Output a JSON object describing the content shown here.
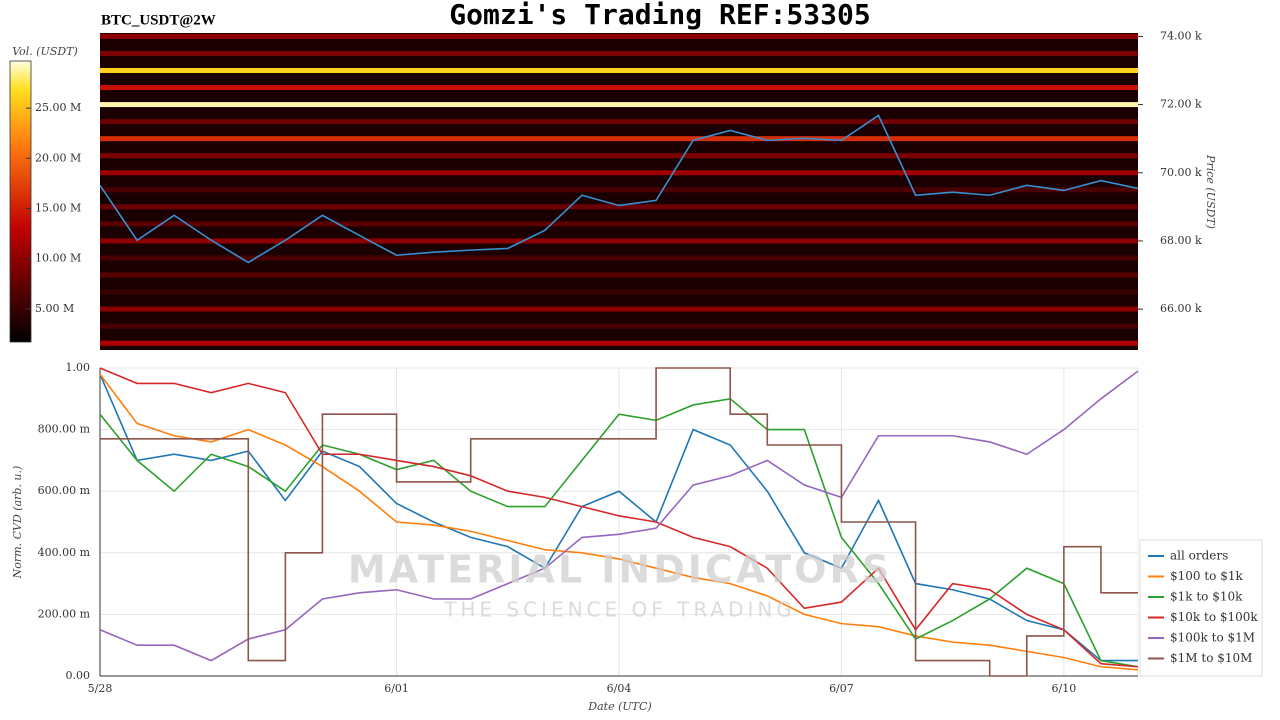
{
  "header": {
    "title": "Gomzi's Trading REF:53305",
    "symbol": "BTC_USDT@2W"
  },
  "watermark": {
    "title": "MATERIAL INDICATORS",
    "subtitle": "THE SCIENCE OF TRADING"
  },
  "chart_data": [
    {
      "type": "heatmap",
      "ylabel": "Price (USDT)",
      "xlim": [
        0,
        14
      ],
      "ylim": [
        64800,
        74100
      ],
      "yticks": [
        {
          "value": 66000,
          "label": "66.00 k"
        },
        {
          "value": 68000,
          "label": "68.00 k"
        },
        {
          "value": 70000,
          "label": "70.00 k"
        },
        {
          "value": 72000,
          "label": "72.00 k"
        },
        {
          "value": 74000,
          "label": "74.00 k"
        }
      ],
      "levels": [
        65000,
        65500,
        66000,
        66500,
        67000,
        67500,
        68000,
        68500,
        69000,
        69500,
        70000,
        70500,
        71000,
        71500,
        72000,
        72500,
        73000,
        73500,
        74000
      ],
      "volumes": [
        12000000,
        6000000,
        10000000,
        5000000,
        7000000,
        6000000,
        10000000,
        7000000,
        8000000,
        6000000,
        11000000,
        9000000,
        16000000,
        8000000,
        29000000,
        14000000,
        26000000,
        9000000,
        10000000
      ],
      "colorbar": {
        "label": "Vol. (USDT)",
        "lim": [
          1700000,
          29700000
        ],
        "ticks": [
          {
            "value": 5000000,
            "label": "5.00 M"
          },
          {
            "value": 10000000,
            "label": "10.00 M"
          },
          {
            "value": 15000000,
            "label": "15.00 M"
          },
          {
            "value": 20000000,
            "label": "20.00 M"
          },
          {
            "value": 25000000,
            "label": "25.00 M"
          }
        ]
      },
      "x": [
        0,
        0.5,
        1,
        1.5,
        2,
        2.5,
        3,
        3.5,
        4,
        4.5,
        5,
        5.5,
        6,
        6.5,
        7,
        7.5,
        8,
        8.5,
        9,
        9.5,
        10,
        10.5,
        11,
        11.5,
        12,
        12.5,
        13,
        13.5,
        14
      ],
      "price": [
        69630,
        68020,
        68750,
        68020,
        67370,
        68020,
        68750,
        68160,
        67580,
        67670,
        67730,
        67780,
        68310,
        69340,
        69040,
        69190,
        70950,
        71240,
        70950,
        71010,
        70950,
        71680,
        69340,
        69430,
        69340,
        69630,
        69480,
        69770,
        69540
      ],
      "price_color": "#3a8fd0"
    },
    {
      "type": "line",
      "xlabel": "Date (UTC)",
      "ylabel": "Norm. CVD (arb. u.)",
      "xlim": [
        0,
        14
      ],
      "ylim": [
        0,
        1
      ],
      "xticks": [
        {
          "value": 0,
          "label": "5/28"
        },
        {
          "value": 4,
          "label": "6/01"
        },
        {
          "value": 7,
          "label": "6/04"
        },
        {
          "value": 10,
          "label": "6/07"
        },
        {
          "value": 13,
          "label": "6/10"
        }
      ],
      "yticks": [
        {
          "value": 0,
          "label": "0.00"
        },
        {
          "value": 0.2,
          "label": "200.00 m"
        },
        {
          "value": 0.4,
          "label": "400.00 m"
        },
        {
          "value": 0.6,
          "label": "600.00 m"
        },
        {
          "value": 0.8,
          "label": "800.00 m"
        },
        {
          "value": 1,
          "label": "1.00"
        }
      ],
      "grid": true,
      "legend": "lower right",
      "x": [
        0,
        0.5,
        1,
        1.5,
        2,
        2.5,
        3,
        3.5,
        4,
        4.5,
        5,
        5.5,
        6,
        6.5,
        7,
        7.5,
        8,
        8.5,
        9,
        9.5,
        10,
        10.5,
        11,
        11.5,
        12,
        12.5,
        13,
        13.5,
        14
      ],
      "series": [
        {
          "name": "all orders",
          "color": "#1f77b4",
          "values": [
            0.98,
            0.7,
            0.72,
            0.7,
            0.73,
            0.57,
            0.73,
            0.68,
            0.56,
            0.5,
            0.45,
            0.42,
            0.35,
            0.55,
            0.6,
            0.5,
            0.8,
            0.75,
            0.6,
            0.4,
            0.35,
            0.57,
            0.3,
            0.28,
            0.25,
            0.18,
            0.15,
            0.05,
            0.05
          ]
        },
        {
          "name": "$100 to $1k",
          "color": "#ff7f0e",
          "values": [
            0.98,
            0.82,
            0.78,
            0.76,
            0.8,
            0.75,
            0.68,
            0.6,
            0.5,
            0.49,
            0.47,
            0.44,
            0.41,
            0.4,
            0.38,
            0.35,
            0.32,
            0.3,
            0.26,
            0.2,
            0.17,
            0.16,
            0.13,
            0.11,
            0.1,
            0.08,
            0.06,
            0.03,
            0.02
          ]
        },
        {
          "name": "$1k to $10k",
          "color": "#2ca02c",
          "values": [
            0.85,
            0.7,
            0.6,
            0.72,
            0.68,
            0.6,
            0.75,
            0.72,
            0.67,
            0.7,
            0.6,
            0.55,
            0.55,
            0.7,
            0.85,
            0.83,
            0.88,
            0.9,
            0.8,
            0.8,
            0.45,
            0.3,
            0.12,
            0.18,
            0.25,
            0.35,
            0.3,
            0.05,
            0.03
          ]
        },
        {
          "name": "$10k to $100k",
          "color": "#d62728",
          "values": [
            1.0,
            0.95,
            0.95,
            0.92,
            0.95,
            0.92,
            0.72,
            0.72,
            0.7,
            0.68,
            0.65,
            0.6,
            0.58,
            0.55,
            0.52,
            0.5,
            0.45,
            0.42,
            0.35,
            0.22,
            0.24,
            0.35,
            0.15,
            0.3,
            0.28,
            0.2,
            0.15,
            0.04,
            0.03
          ]
        },
        {
          "name": "$100k to $1M",
          "color": "#9467bd",
          "values": [
            0.15,
            0.1,
            0.1,
            0.05,
            0.12,
            0.15,
            0.25,
            0.27,
            0.28,
            0.25,
            0.25,
            0.3,
            0.35,
            0.45,
            0.46,
            0.48,
            0.62,
            0.65,
            0.7,
            0.62,
            0.58,
            0.78,
            0.78,
            0.78,
            0.76,
            0.72,
            0.8,
            0.9,
            0.99
          ]
        },
        {
          "name": "$1M to $10M",
          "color": "#8c564b",
          "step": "post",
          "values": [
            0.77,
            0.77,
            0.77,
            0.77,
            0.05,
            0.4,
            0.85,
            0.85,
            0.63,
            0.63,
            0.77,
            0.77,
            0.77,
            0.77,
            0.77,
            1.0,
            1.0,
            0.85,
            0.75,
            0.75,
            0.5,
            0.5,
            0.05,
            0.05,
            0.0,
            0.13,
            0.42,
            0.27,
            0.27
          ]
        }
      ]
    }
  ]
}
